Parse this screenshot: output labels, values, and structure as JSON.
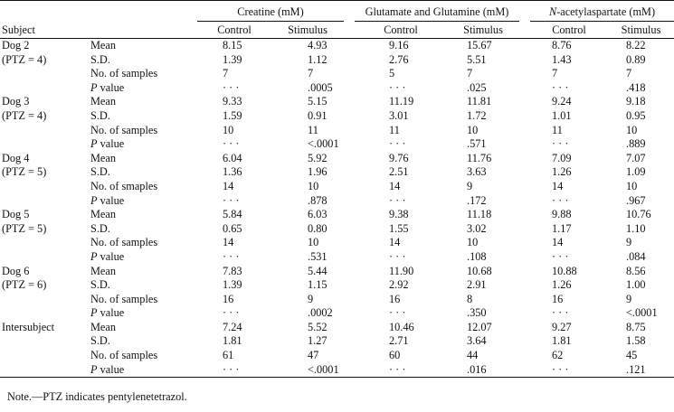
{
  "headers": {
    "subject": "Subject",
    "groups": [
      "Creatine (mM)",
      "Glutamate and Glutamine (mM)",
      "acetylaspartate (mM)"
    ],
    "group3_italic_prefix": "N",
    "group3_dash": "-",
    "sub": [
      "Control",
      "Stimulus",
      "Control",
      "Stimulus",
      "Control",
      "Stimulus"
    ]
  },
  "p_label": "value",
  "p_italic": "P",
  "rows": [
    {
      "s": "Dog 2",
      "m": "Mean",
      "v": [
        "8.15",
        "4.93",
        "9.16",
        "15.67",
        "8.76",
        "8.22"
      ]
    },
    {
      "s": "(PTZ = 4)",
      "m": "S.D.",
      "v": [
        "1.39",
        "1.12",
        "2.76",
        "5.51",
        "1.43",
        "0.89"
      ]
    },
    {
      "s": "",
      "m": "No. of samples",
      "v": [
        "7",
        "7",
        "5",
        "7",
        "7",
        "7"
      ]
    },
    {
      "s": "",
      "m": "P value",
      "v": [
        "· · ·",
        ".0005",
        "· · ·",
        ".025",
        "· · ·",
        ".418"
      ]
    },
    {
      "s": "Dog 3",
      "m": "Mean",
      "v": [
        "9.33",
        "5.15",
        "11.19",
        "11.81",
        "9.24",
        "9.18"
      ]
    },
    {
      "s": "(PTZ = 4)",
      "m": "S.D.",
      "v": [
        "1.59",
        "0.91",
        "3.01",
        "1.72",
        "1.01",
        "0.95"
      ]
    },
    {
      "s": "",
      "m": "No. of samples",
      "v": [
        "10",
        "11",
        "11",
        "10",
        "11",
        "10"
      ]
    },
    {
      "s": "",
      "m": "P value",
      "v": [
        "· · ·",
        "<.0001",
        "· · ·",
        ".571",
        "· · ·",
        ".889"
      ]
    },
    {
      "s": "Dog 4",
      "m": "Mean",
      "v": [
        "6.04",
        "5.92",
        "9.76",
        "11.76",
        "7.09",
        "7.07"
      ]
    },
    {
      "s": "(PTZ = 5)",
      "m": "S.D.",
      "v": [
        "1.36",
        "1.96",
        "2.51",
        "3.63",
        "1.26",
        "1.09"
      ]
    },
    {
      "s": "",
      "m": "No. of smaples",
      "v": [
        "14",
        "10",
        "14",
        "9",
        "14",
        "10"
      ]
    },
    {
      "s": "",
      "m": "P value",
      "v": [
        "· · ·",
        ".878",
        "· · ·",
        ".172",
        "· · ·",
        ".967"
      ]
    },
    {
      "s": "Dog 5",
      "m": "Mean",
      "v": [
        "5.84",
        "6.03",
        "9.38",
        "11.18",
        "9.88",
        "10.76"
      ]
    },
    {
      "s": "(PTZ = 5)",
      "m": "S.D.",
      "v": [
        "0.65",
        "0.80",
        "1.55",
        "3.02",
        "1.17",
        "1.10"
      ]
    },
    {
      "s": "",
      "m": "No. of samples",
      "v": [
        "14",
        "10",
        "14",
        "10",
        "14",
        "9"
      ]
    },
    {
      "s": "",
      "m": "P value",
      "v": [
        "· · ·",
        ".531",
        "· · ·",
        ".108",
        "· · ·",
        ".084"
      ]
    },
    {
      "s": "Dog 6",
      "m": "Mean",
      "v": [
        "7.83",
        "5.44",
        "11.90",
        "10.68",
        "10.88",
        "8.56"
      ]
    },
    {
      "s": "(PTZ = 6)",
      "m": "S.D.",
      "v": [
        "1.39",
        "1.15",
        "2.92",
        "2.91",
        "1.26",
        "1.00"
      ]
    },
    {
      "s": "",
      "m": "No. of samples",
      "v": [
        "16",
        "9",
        "16",
        "8",
        "16",
        "9"
      ]
    },
    {
      "s": "",
      "m": "P value",
      "v": [
        "· · ·",
        ".0002",
        "· · ·",
        ".350",
        "· · ·",
        "<.0001"
      ]
    },
    {
      "s": "Intersubject",
      "m": "Mean",
      "v": [
        "7.24",
        "5.52",
        "10.46",
        "12.07",
        "9.27",
        "8.75"
      ]
    },
    {
      "s": "",
      "m": "S.D.",
      "v": [
        "1.81",
        "1.27",
        "2.71",
        "3.64",
        "1.81",
        "1.58"
      ]
    },
    {
      "s": "",
      "m": "No. of samples",
      "v": [
        "61",
        "47",
        "60",
        "44",
        "62",
        "45"
      ]
    },
    {
      "s": "",
      "m": "P value",
      "v": [
        "· · ·",
        "<.0001",
        "· · ·",
        ".016",
        "· · ·",
        ".121"
      ]
    }
  ],
  "note": "Note.—PTZ indicates pentylenetetrazol."
}
